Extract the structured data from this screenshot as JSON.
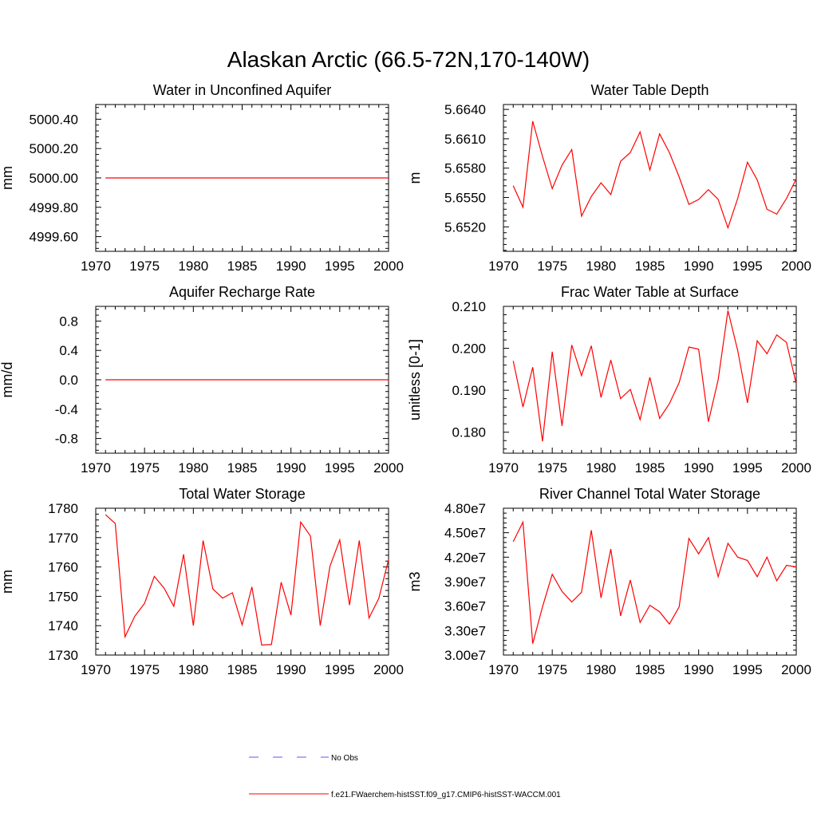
{
  "title": "Alaskan Arctic (66.5-72N,170-140W)",
  "colors": {
    "model": "#ff0000",
    "obs": "#5a5aff",
    "axis": "#000000"
  },
  "legend": {
    "entries": [
      {
        "label": "No Obs",
        "style": "dashed",
        "color": "#5a5aff"
      },
      {
        "label": "f.e21.FWaerchem-histSST.f09_g17.CMIP6-histSST-WACCM.001",
        "style": "solid",
        "color": "#ff0000"
      }
    ]
  },
  "chart_data": [
    {
      "type": "line",
      "title": "Water in Unconfined Aquifer",
      "ylabel": "mm",
      "xlim": [
        1970,
        2000
      ],
      "ylim": [
        4999.5,
        5000.5
      ],
      "xticks": [
        1970,
        1975,
        1980,
        1985,
        1990,
        1995,
        2000
      ],
      "yticks": [
        4999.6,
        4999.8,
        5000.0,
        5000.2,
        5000.4
      ],
      "ytick_labels": [
        "4999.60",
        "4999.80",
        "5000.00",
        "5000.20",
        "5000.40"
      ],
      "x": [
        1971,
        1972,
        1973,
        1974,
        1975,
        1976,
        1977,
        1978,
        1979,
        1980,
        1981,
        1982,
        1983,
        1984,
        1985,
        1986,
        1987,
        1988,
        1989,
        1990,
        1991,
        1992,
        1993,
        1994,
        1995,
        1996,
        1997,
        1998,
        1999,
        2000
      ],
      "series": [
        {
          "values": [
            5000,
            5000,
            5000,
            5000,
            5000,
            5000,
            5000,
            5000,
            5000,
            5000,
            5000,
            5000,
            5000,
            5000,
            5000,
            5000,
            5000,
            5000,
            5000,
            5000,
            5000,
            5000,
            5000,
            5000,
            5000,
            5000,
            5000,
            5000,
            5000,
            5000
          ]
        }
      ]
    },
    {
      "type": "line",
      "title": "Water Table Depth",
      "ylabel": "m",
      "xlim": [
        1970,
        2000
      ],
      "ylim": [
        5.6495,
        5.6645
      ],
      "xticks": [
        1970,
        1975,
        1980,
        1985,
        1990,
        1995,
        2000
      ],
      "yticks": [
        5.652,
        5.655,
        5.658,
        5.661,
        5.664
      ],
      "ytick_labels": [
        "5.6520",
        "5.6550",
        "5.6580",
        "5.6610",
        "5.6640"
      ],
      "x": [
        1971,
        1972,
        1973,
        1974,
        1975,
        1976,
        1977,
        1978,
        1979,
        1980,
        1981,
        1982,
        1983,
        1984,
        1985,
        1986,
        1987,
        1988,
        1989,
        1990,
        1991,
        1992,
        1993,
        1994,
        1995,
        1996,
        1997,
        1998,
        1999,
        2000
      ],
      "series": [
        {
          "values": [
            5.6562,
            5.654,
            5.6628,
            5.6592,
            5.6559,
            5.6583,
            5.6599,
            5.6531,
            5.6551,
            5.6565,
            5.6553,
            5.6587,
            5.6596,
            5.6617,
            5.6578,
            5.6615,
            5.6596,
            5.6571,
            5.6543,
            5.6548,
            5.6558,
            5.6548,
            5.6519,
            5.6549,
            5.6586,
            5.6568,
            5.6538,
            5.6533,
            5.6549,
            5.6569
          ]
        }
      ]
    },
    {
      "type": "line",
      "title": "Aquifer Recharge Rate",
      "ylabel": "mm/d",
      "xlim": [
        1970,
        2000
      ],
      "ylim": [
        -1.0,
        1.0
      ],
      "xticks": [
        1970,
        1975,
        1980,
        1985,
        1990,
        1995,
        2000
      ],
      "yticks": [
        -0.8,
        -0.4,
        0.0,
        0.4,
        0.8
      ],
      "ytick_labels": [
        "-0.8",
        "-0.4",
        "0.0",
        "0.4",
        "0.8"
      ],
      "x": [
        1971,
        1972,
        1973,
        1974,
        1975,
        1976,
        1977,
        1978,
        1979,
        1980,
        1981,
        1982,
        1983,
        1984,
        1985,
        1986,
        1987,
        1988,
        1989,
        1990,
        1991,
        1992,
        1993,
        1994,
        1995,
        1996,
        1997,
        1998,
        1999,
        2000
      ],
      "series": [
        {
          "values": [
            0,
            0,
            0,
            0,
            0,
            0,
            0,
            0,
            0,
            0,
            0,
            0,
            0,
            0,
            0,
            0,
            0,
            0,
            0,
            0,
            0,
            0,
            0,
            0,
            0,
            0,
            0,
            0,
            0,
            0
          ]
        }
      ]
    },
    {
      "type": "line",
      "title": "Frac Water Table at Surface",
      "ylabel": "unitless [0-1]",
      "xlim": [
        1970,
        2000
      ],
      "ylim": [
        0.175,
        0.21
      ],
      "xticks": [
        1970,
        1975,
        1980,
        1985,
        1990,
        1995,
        2000
      ],
      "yticks": [
        0.18,
        0.19,
        0.2,
        0.21
      ],
      "ytick_labels": [
        "0.180",
        "0.190",
        "0.200",
        "0.210"
      ],
      "x": [
        1971,
        1972,
        1973,
        1974,
        1975,
        1976,
        1977,
        1978,
        1979,
        1980,
        1981,
        1982,
        1983,
        1984,
        1985,
        1986,
        1987,
        1988,
        1989,
        1990,
        1991,
        1992,
        1993,
        1994,
        1995,
        1996,
        1997,
        1998,
        1999,
        2000
      ],
      "series": [
        {
          "values": [
            0.197,
            0.186,
            0.1955,
            0.1778,
            0.1992,
            0.1815,
            0.2008,
            0.1935,
            0.2006,
            0.1883,
            0.1972,
            0.188,
            0.1902,
            0.183,
            0.1931,
            0.1833,
            0.1868,
            0.1918,
            0.2003,
            0.1998,
            0.1825,
            0.1925,
            0.209,
            0.1995,
            0.187,
            0.2018,
            0.1987,
            0.2032,
            0.2014,
            0.1915
          ]
        }
      ]
    },
    {
      "type": "line",
      "title": "Total Water Storage",
      "ylabel": "mm",
      "xlim": [
        1970,
        2000
      ],
      "ylim": [
        1730,
        1780
      ],
      "xticks": [
        1970,
        1975,
        1980,
        1985,
        1990,
        1995,
        2000
      ],
      "yticks": [
        1730,
        1740,
        1750,
        1760,
        1770,
        1780
      ],
      "ytick_labels": [
        "1730",
        "1740",
        "1750",
        "1760",
        "1770",
        "1780"
      ],
      "x": [
        1971,
        1972,
        1973,
        1974,
        1975,
        1976,
        1977,
        1978,
        1979,
        1980,
        1981,
        1982,
        1983,
        1984,
        1985,
        1986,
        1987,
        1988,
        1989,
        1990,
        1991,
        1992,
        1993,
        1994,
        1995,
        1996,
        1997,
        1998,
        1999,
        2000
      ],
      "series": [
        {
          "values": [
            1777.8,
            1774.8,
            1736.2,
            1743.2,
            1747.6,
            1756.8,
            1752.8,
            1746.6,
            1764.3,
            1740.0,
            1769.0,
            1752.5,
            1749.4,
            1751.2,
            1740.3,
            1753.2,
            1733.4,
            1733.6,
            1754.8,
            1743.6,
            1775.3,
            1770.5,
            1740.0,
            1760.3,
            1769.2,
            1747.0,
            1769.0,
            1742.6,
            1749.3,
            1762.5
          ]
        }
      ]
    },
    {
      "type": "line",
      "title": "River Channel Total Water Storage",
      "ylabel": "m3",
      "xlim": [
        1970,
        2000
      ],
      "ylim": [
        30000000,
        48000000
      ],
      "xticks": [
        1970,
        1975,
        1980,
        1985,
        1990,
        1995,
        2000
      ],
      "yticks": [
        30000000,
        33000000,
        36000000,
        39000000,
        42000000,
        45000000,
        48000000
      ],
      "ytick_labels": [
        "3.00e7",
        "3.30e7",
        "3.60e7",
        "3.90e7",
        "4.20e7",
        "4.50e7",
        "4.80e7"
      ],
      "x": [
        1971,
        1972,
        1973,
        1974,
        1975,
        1976,
        1977,
        1978,
        1979,
        1980,
        1981,
        1982,
        1983,
        1984,
        1985,
        1986,
        1987,
        1988,
        1989,
        1990,
        1991,
        1992,
        1993,
        1994,
        1995,
        1996,
        1997,
        1998,
        1999,
        2000
      ],
      "series": [
        {
          "values": [
            43900000,
            46300000,
            31400000,
            35900000,
            39900000,
            37800000,
            36500000,
            37700000,
            45300000,
            37000000,
            43000000,
            34800000,
            39200000,
            34000000,
            36100000,
            35300000,
            33800000,
            35900000,
            44300000,
            42400000,
            44400000,
            39600000,
            43700000,
            42000000,
            41600000,
            39600000,
            42000000,
            39100000,
            41000000,
            40800000
          ]
        }
      ]
    }
  ]
}
